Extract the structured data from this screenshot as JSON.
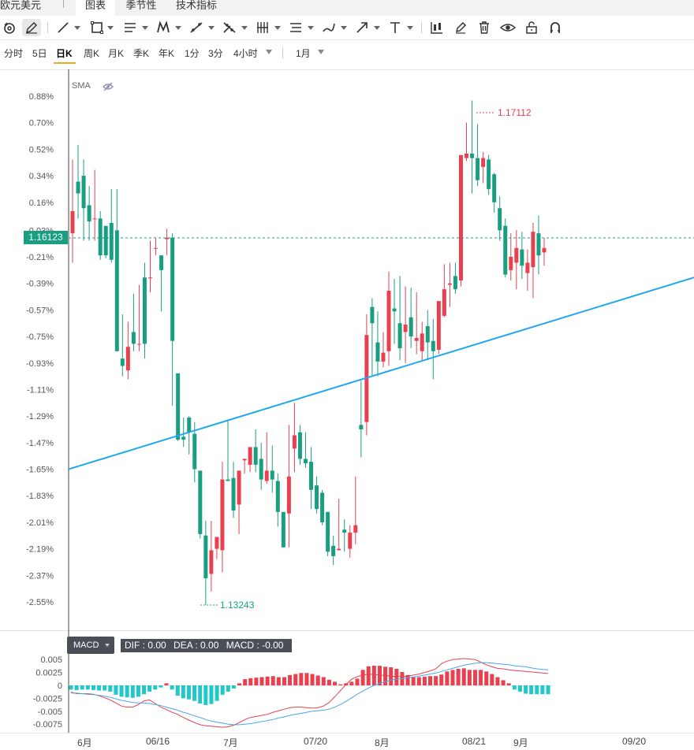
{
  "header": {
    "title": "欧元美元",
    "tabs": [
      {
        "label": "图表",
        "active": true
      },
      {
        "label": "季节性",
        "active": false
      },
      {
        "label": "技术指标",
        "active": false
      }
    ]
  },
  "toolbar": {
    "tools": [
      "magnet-cycle-icon",
      "pencil-edit-icon",
      "line-icon",
      "rectangle-icon",
      "parallel-lines-icon",
      "pattern-icon",
      "fib-icon",
      "gann-icon",
      "vertical-lines-icon",
      "channel-icon",
      "brush-icon",
      "arrow-icon",
      "text-icon",
      "candle-settings-icon",
      "draw-pen-icon",
      "trash-icon",
      "eye-icon",
      "unlock-icon",
      "magnet-icon"
    ]
  },
  "periods": {
    "items": [
      "分时",
      "5日",
      "日K",
      "周K",
      "月K",
      "季K",
      "年K",
      "1分",
      "3分",
      "4小时"
    ],
    "active": "日K",
    "range": "1月"
  },
  "chart": {
    "indicator": "SMA",
    "current_price": "1.16123",
    "high_label": "1.17112",
    "low_label": "1.13243",
    "colors": {
      "up": "#e8404f",
      "down": "#1a9e82",
      "trendline": "#1fa8f0",
      "accent": "#f5a623"
    },
    "y_labels": [
      "0.88%",
      "0.70%",
      "0.52%",
      "0.34%",
      "0.16%",
      "-0.03%",
      "-0.21%",
      "-0.39%",
      "-0.57%",
      "-0.75%",
      "-0.93%",
      "-1.11%",
      "-1.29%",
      "-1.47%",
      "-1.65%",
      "-1.83%",
      "-2.01%",
      "-2.19%",
      "-2.37%",
      "-2.55%"
    ]
  },
  "macd": {
    "label": "MACD",
    "dif": "DIF : 0.00",
    "dea": "DEA : 0.00",
    "macd": "MACD : -0.00",
    "y_labels": [
      "0.005",
      "0.0025",
      "0",
      "-0.0025",
      "-0.005",
      "-0.0075"
    ]
  },
  "xaxis": {
    "labels": [
      "6月",
      "06/16",
      "7月",
      "07/20",
      "8月",
      "08/21",
      "9月",
      "09/20"
    ]
  },
  "chart_data": {
    "type": "candlestick",
    "ylim_pct": [
      -2.65,
      0.95
    ],
    "candles_pct": [
      [
        -0.05,
        0.1,
        0.45,
        -0.25
      ],
      [
        0.3,
        0.22,
        0.55,
        0.05
      ],
      [
        0.34,
        0.12,
        0.45,
        -0.1
      ],
      [
        0.14,
        0.03,
        0.27,
        -0.1
      ],
      [
        0.05,
        0.05,
        0.38,
        -0.1
      ],
      [
        0.05,
        -0.2,
        0.1,
        -0.23
      ],
      [
        0.0,
        -0.2,
        0.0,
        -0.22
      ],
      [
        0.02,
        -0.23,
        0.25,
        -0.25
      ],
      [
        -0.03,
        -0.85,
        0.25,
        -0.85
      ],
      [
        -0.9,
        -0.95,
        -0.6,
        -1.02
      ],
      [
        -0.98,
        -0.82,
        -0.65,
        -1.04
      ],
      [
        -0.72,
        -0.8,
        -0.46,
        -0.85
      ],
      [
        -0.8,
        -0.8,
        -0.4,
        -0.85
      ],
      [
        -0.35,
        -0.8,
        -0.25,
        -0.9
      ],
      [
        -0.35,
        -0.35,
        -0.1,
        -0.45
      ],
      [
        -0.15,
        -0.15,
        -0.08,
        -0.2
      ],
      [
        -0.2,
        -0.3,
        -0.2,
        -0.58
      ],
      [
        -0.09,
        -0.08,
        -0.02,
        -0.2
      ],
      [
        -0.08,
        -0.78,
        -0.05,
        -1.22
      ],
      [
        -1.0,
        -1.45,
        -1.0,
        -1.46
      ],
      [
        -1.43,
        -1.45,
        -1.3,
        -1.5
      ],
      [
        -1.3,
        -1.4,
        -1.29,
        -1.55
      ],
      [
        -1.41,
        -1.65,
        -1.33,
        -1.74
      ],
      [
        -1.66,
        -2.09,
        -1.66,
        -2.12
      ],
      [
        -2.1,
        -2.39,
        -2.0,
        -2.57
      ],
      [
        -2.36,
        -2.2,
        -2.0,
        -2.48
      ],
      [
        -2.19,
        -2.11,
        -2.11,
        -2.26
      ],
      [
        -2.2,
        -1.72,
        -1.6,
        -2.35
      ],
      [
        -1.72,
        -1.73,
        -1.32,
        -1.73
      ],
      [
        -1.71,
        -1.93,
        -1.6,
        -1.98
      ],
      [
        -1.89,
        -1.66,
        -1.66,
        -2.09
      ],
      [
        -1.59,
        -1.58,
        -1.58,
        -1.68
      ],
      [
        -1.62,
        -1.5,
        -1.5,
        -1.67
      ],
      [
        -1.5,
        -1.62,
        -1.38,
        -1.67
      ],
      [
        -1.58,
        -1.72,
        -1.47,
        -1.79
      ],
      [
        -1.73,
        -1.66,
        -1.4,
        -1.75
      ],
      [
        -1.66,
        -1.72,
        -1.49,
        -1.81
      ],
      [
        -1.73,
        -1.94,
        -1.68,
        -2.04
      ],
      [
        -1.94,
        -2.18,
        -1.94,
        -2.18
      ],
      [
        -1.95,
        -1.7,
        -1.35,
        -2.18
      ],
      [
        -1.51,
        -1.42,
        -1.2,
        -1.67
      ],
      [
        -1.4,
        -1.58,
        -1.35,
        -1.62
      ],
      [
        -1.58,
        -1.61,
        -1.4,
        -1.64
      ],
      [
        -1.6,
        -1.79,
        -1.5,
        -1.92
      ],
      [
        -1.76,
        -1.92,
        -1.7,
        -1.95
      ],
      [
        -1.81,
        -2.01,
        -1.79,
        -2.03
      ],
      [
        -1.94,
        -2.21,
        -1.94,
        -2.24
      ],
      [
        -2.17,
        -2.24,
        -2.1,
        -2.3
      ],
      [
        -2.2,
        -2.19,
        -1.85,
        -2.2
      ],
      [
        -2.06,
        -2.08,
        -1.99,
        -2.21
      ],
      [
        -2.19,
        -2.08,
        -2.03,
        -2.25
      ],
      [
        -2.08,
        -2.03,
        -1.7,
        -2.16
      ],
      [
        -1.35,
        -1.38,
        -1.05,
        -1.57
      ],
      [
        -1.33,
        -0.74,
        -0.6,
        -1.42
      ],
      [
        -0.55,
        -0.66,
        -0.49,
        -1.02
      ],
      [
        -0.79,
        -0.92,
        -0.58,
        -1.02
      ],
      [
        -0.92,
        -0.86,
        -0.72,
        -0.96
      ],
      [
        -0.85,
        -0.44,
        -0.31,
        -0.95
      ],
      [
        -0.56,
        -0.58,
        -0.36,
        -0.8
      ],
      [
        -0.66,
        -0.83,
        -0.34,
        -0.91
      ],
      [
        -0.72,
        -0.67,
        -0.41,
        -0.93
      ],
      [
        -0.62,
        -0.75,
        -0.42,
        -0.83
      ],
      [
        -0.78,
        -0.76,
        -0.45,
        -0.87
      ],
      [
        -0.85,
        -0.73,
        -0.65,
        -0.91
      ],
      [
        -0.68,
        -0.79,
        -0.57,
        -0.91
      ],
      [
        -0.78,
        -0.85,
        -0.63,
        -1.04
      ],
      [
        -0.84,
        -0.51,
        -0.51,
        -0.87
      ],
      [
        -0.61,
        -0.43,
        -0.26,
        -0.62
      ],
      [
        -0.4,
        -0.39,
        -0.25,
        -0.55
      ],
      [
        -0.34,
        -0.43,
        -0.25,
        -0.46
      ],
      [
        -0.37,
        0.48,
        0.48,
        -0.41
      ],
      [
        0.46,
        0.49,
        0.7,
        0.44
      ],
      [
        0.49,
        0.46,
        0.85,
        0.22
      ],
      [
        0.46,
        0.31,
        0.69,
        0.27
      ],
      [
        0.4,
        0.46,
        0.5,
        0.29
      ],
      [
        0.45,
        0.25,
        0.48,
        0.21
      ],
      [
        0.35,
        0.16,
        0.36,
        0.09
      ],
      [
        0.12,
        -0.03,
        0.2,
        -0.1
      ],
      [
        0.0,
        -0.33,
        0.05,
        -0.35
      ],
      [
        -0.3,
        -0.21,
        -0.05,
        -0.37
      ],
      [
        -0.25,
        -0.15,
        -0.03,
        -0.43
      ],
      [
        -0.16,
        -0.27,
        -0.04,
        -0.36
      ],
      [
        -0.32,
        -0.25,
        -0.16,
        -0.44
      ],
      [
        -0.28,
        -0.04,
        0.02,
        -0.49
      ],
      [
        -0.05,
        -0.2,
        0.07,
        -0.33
      ],
      [
        -0.18,
        -0.15,
        -0.08,
        -0.27
      ]
    ],
    "trendline_pct": [
      [
        0,
        -1.65
      ],
      [
        100,
        -0.35
      ]
    ],
    "macd_hist": [
      -0.0008,
      -0.0009,
      -0.0008,
      -0.0008,
      -0.0009,
      -0.001,
      -0.001,
      -0.0012,
      -0.0018,
      -0.0022,
      -0.0023,
      -0.0024,
      -0.0022,
      -0.0017,
      -0.0012,
      -0.0008,
      -0.0004,
      0.0004,
      -0.0008,
      -0.002,
      -0.0025,
      -0.0027,
      -0.003,
      -0.0035,
      -0.0038,
      -0.0036,
      -0.003,
      -0.0018,
      -0.0012,
      -0.0006,
      0.0004,
      0.0012,
      0.0014,
      0.0015,
      0.0016,
      0.0017,
      0.0018,
      0.0016,
      0.0016,
      0.002,
      0.0022,
      0.0024,
      0.0024,
      0.0022,
      0.0019,
      0.0016,
      0.0011,
      0.0007,
      0.0002,
      0.0004,
      0.0007,
      0.0013,
      0.003,
      0.0037,
      0.0038,
      0.0038,
      0.0036,
      0.0035,
      0.0032,
      0.0026,
      0.002,
      0.0017,
      0.0016,
      0.0017,
      0.0018,
      0.0018,
      0.0021,
      0.0027,
      0.003,
      0.0032,
      0.0033,
      0.003,
      0.003,
      0.003,
      0.0027,
      0.0022,
      0.0016,
      0.001,
      0.0004,
      -0.0008,
      -0.0012,
      -0.0016,
      -0.0017,
      -0.0017,
      -0.0017,
      -0.0017
    ],
    "macd_dif": [
      -0.0013,
      -0.0016,
      -0.0016,
      -0.0016,
      -0.0017,
      -0.002,
      -0.0024,
      -0.0028,
      -0.0034,
      -0.004,
      -0.0042,
      -0.0042,
      -0.0037,
      -0.003,
      -0.0028,
      -0.0035,
      -0.0042,
      -0.0047,
      -0.0052,
      -0.0056,
      -0.0062,
      -0.0067,
      -0.0072,
      -0.0076,
      -0.0078,
      -0.0079,
      -0.008,
      -0.0081,
      -0.008,
      -0.0077,
      -0.0072,
      -0.0066,
      -0.0062,
      -0.006,
      -0.0058,
      -0.0056,
      -0.0052,
      -0.0049,
      -0.0046,
      -0.0043,
      -0.0042,
      -0.0042,
      -0.0043,
      -0.0044,
      -0.0043,
      -0.004,
      -0.0033,
      -0.0022,
      -0.001,
      0.0002,
      0.0012,
      0.0017,
      0.002,
      0.0022,
      0.0021,
      0.002,
      0.0019,
      0.0018,
      0.0017,
      0.0017,
      0.0018,
      0.002,
      0.0022,
      0.0025,
      0.0028,
      0.0032,
      0.0042,
      0.0047,
      0.005,
      0.0051,
      0.0052,
      0.0051,
      0.005,
      0.0045,
      0.004,
      0.0036,
      0.0033,
      0.0032,
      0.003,
      0.0029,
      0.0028,
      0.0027,
      0.0026,
      0.0025,
      0.0024,
      0.0023
    ],
    "macd_dea": [
      -0.0015,
      -0.0015,
      -0.0016,
      -0.0017,
      -0.0018,
      -0.0019,
      -0.0021,
      -0.0023,
      -0.0026,
      -0.0029,
      -0.0031,
      -0.0033,
      -0.0034,
      -0.0034,
      -0.0035,
      -0.0037,
      -0.0039,
      -0.0042,
      -0.0045,
      -0.0048,
      -0.0052,
      -0.0055,
      -0.0059,
      -0.0062,
      -0.0066,
      -0.0069,
      -0.0071,
      -0.0073,
      -0.0075,
      -0.0076,
      -0.0076,
      -0.0075,
      -0.0074,
      -0.0072,
      -0.007,
      -0.0068,
      -0.0066,
      -0.0063,
      -0.0061,
      -0.0058,
      -0.0056,
      -0.0054,
      -0.0052,
      -0.005,
      -0.0049,
      -0.0048,
      -0.0046,
      -0.0042,
      -0.0037,
      -0.0031,
      -0.0024,
      -0.0017,
      -0.0011,
      -0.0005,
      0.0,
      0.0004,
      0.0007,
      0.001,
      0.0012,
      0.0013,
      0.0015,
      0.0016,
      0.0018,
      0.002,
      0.0022,
      0.0024,
      0.0027,
      0.003,
      0.0033,
      0.0036,
      0.0039,
      0.0041,
      0.0043,
      0.0044,
      0.0044,
      0.0043,
      0.0042,
      0.0041,
      0.004,
      0.0038,
      0.0037,
      0.0036,
      0.0034,
      0.0032,
      0.0031,
      0.003
    ]
  }
}
